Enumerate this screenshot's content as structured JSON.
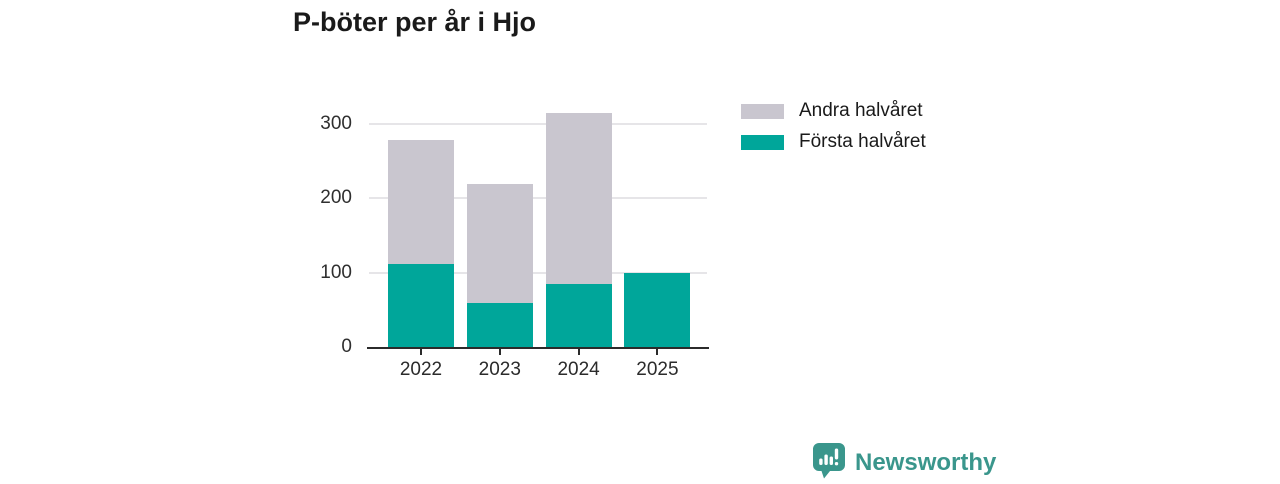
{
  "title": "P-böter per år i Hjo",
  "chart_data": {
    "type": "bar",
    "stacked": true,
    "title": "P-böter per år i Hjo",
    "categories": [
      "2022",
      "2023",
      "2024",
      "2025"
    ],
    "series": [
      {
        "name": "Första halvåret",
        "color": "#00a69a",
        "values": [
          112,
          59,
          85,
          100
        ]
      },
      {
        "name": "Andra halvåret",
        "color": "#c9c6cf",
        "values": [
          166,
          160,
          230,
          0
        ]
      }
    ],
    "totals": [
      278,
      219,
      315,
      100
    ],
    "xlabel": "",
    "ylabel": "",
    "yticks": [
      0,
      100,
      200,
      300
    ],
    "ylim": [
      0,
      332
    ],
    "grid": "horizontal",
    "legend_position": "top-right",
    "legend_order": [
      "Andra halvåret",
      "Första halvåret"
    ]
  },
  "legend": {
    "items": [
      {
        "label": "Andra halvåret",
        "color": "#c9c6cf"
      },
      {
        "label": "Första halvåret",
        "color": "#00a69a"
      }
    ]
  },
  "footer": {
    "brand": "Newsworthy",
    "brand_color": "#3a968c",
    "logo_icon": "bar-chart-speech-bubble"
  },
  "colors": {
    "background": "#ffffff",
    "title_text": "#1a1a1a",
    "axis_line": "#2b2b2b",
    "tick_text": "#2f2f2f",
    "gridline": "#e6e5e8"
  }
}
